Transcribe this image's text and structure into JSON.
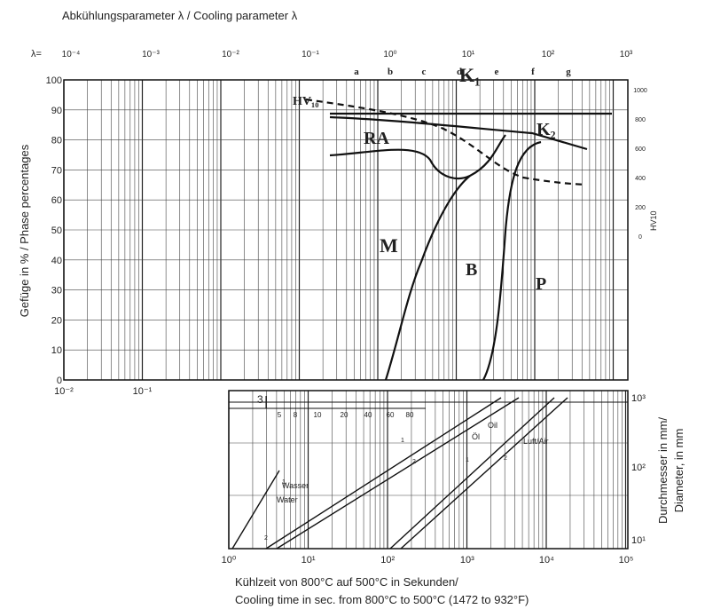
{
  "title": "Abkühlungsparameter λ / Cooling parameter λ",
  "lambda_axis": {
    "prefix": "λ=",
    "labels": [
      "10⁻⁴",
      "10⁻³",
      "10⁻²",
      "10⁻¹",
      "10⁰",
      "10¹",
      "10²",
      "10³"
    ]
  },
  "phase_letters": [
    "a",
    "b",
    "c",
    "d",
    "e",
    "f",
    "g"
  ],
  "main_plot": {
    "y_label": "Gefüge in % / Phase percentages",
    "y_ticks": [
      0,
      10,
      20,
      30,
      40,
      50,
      60,
      70,
      80,
      90,
      100
    ],
    "x_ticks": [
      "10⁻²",
      "10⁻¹"
    ],
    "hardness_ticks": [
      1000,
      800,
      600,
      400,
      200,
      0
    ],
    "hardness_label": "HV10",
    "curve_labels": [
      "HV₁₀",
      "K₁",
      "RA",
      "K₂",
      "M",
      "B",
      "P"
    ]
  },
  "cooling_plot": {
    "x_ticks": [
      "10⁰",
      "10¹",
      "10²",
      "10³",
      "10⁴",
      "10⁵"
    ],
    "y_ticks": [
      "10³",
      "10²",
      "10¹"
    ],
    "y_label": [
      "Durchmesser in mm/",
      "Diameter, in mm"
    ],
    "x_label": [
      "Kühlzeit von 800°C auf 500°C in Sekunden/",
      "Cooling time in sec. from 800°C to 500°C (1472 to 932°F)"
    ],
    "inset_label": "3",
    "inset_scale": [
      5,
      8,
      10,
      20,
      40,
      60,
      80
    ],
    "curve_labels": [
      "Wasser",
      "Water",
      "Öl",
      "Oil",
      "Luft/Air",
      "1",
      "2",
      "1",
      "2",
      "1",
      "2"
    ]
  }
}
